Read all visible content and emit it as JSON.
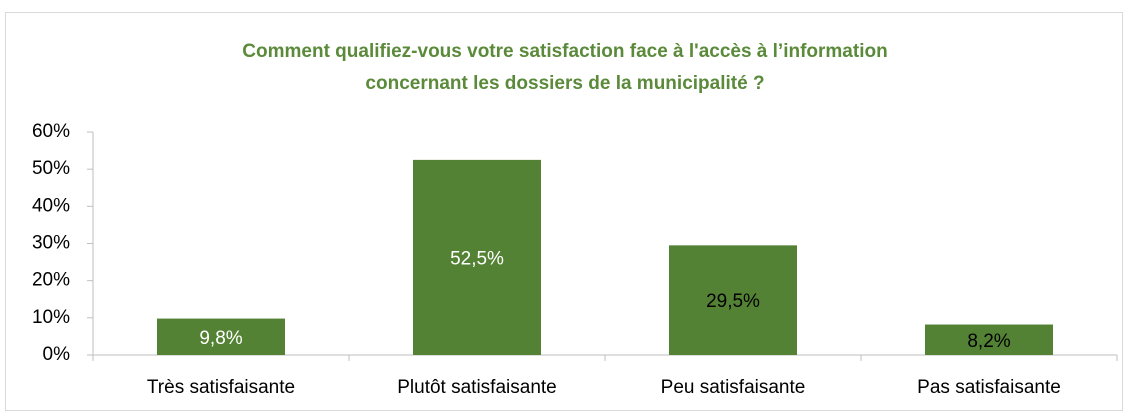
{
  "chart_data": {
    "type": "bar",
    "title": "Comment qualifiez-vous votre satisfaction face à l'accès à l’information concernant les dossiers de la municipalité ?",
    "categories": [
      "Très satisfaisante",
      "Plutôt satisfaisante",
      "Peu satisfaisante",
      "Pas satisfaisante"
    ],
    "values": [
      9.8,
      52.5,
      29.5,
      8.2
    ],
    "value_labels": [
      "9,8%",
      "52,5%",
      "29,5%",
      "8,2%"
    ],
    "value_label_colors": [
      "#ffffff",
      "#ffffff",
      "#000000",
      "#000000"
    ],
    "color": "#548235",
    "ylim": [
      0,
      60
    ],
    "yticks": [
      {
        "value": 0,
        "label": "0%"
      },
      {
        "value": 10,
        "label": "10%"
      },
      {
        "value": 20,
        "label": "20%"
      },
      {
        "value": 30,
        "label": "30%"
      },
      {
        "value": 40,
        "label": "40%"
      },
      {
        "value": 50,
        "label": "50%"
      },
      {
        "value": 60,
        "label": "60%"
      }
    ],
    "grid": false
  }
}
